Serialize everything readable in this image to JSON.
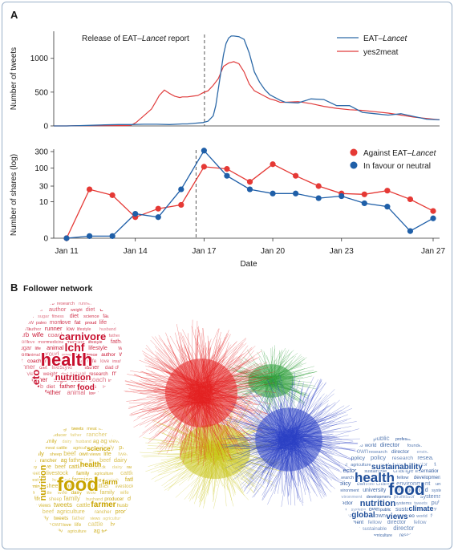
{
  "panel_a_letter": "A",
  "panel_b_letter": "B",
  "panel_b_title": "Follower network",
  "release_annotation": "Release of EAT–Lancet report",
  "colors": {
    "eat_lancet": "#2e6aa8",
    "yes2meat": "#e03c3c",
    "against": "#e53935",
    "favour": "#1f5fa8",
    "net_red": "#e32020",
    "net_yellow": "#c9c51a",
    "net_green": "#2e9e3a",
    "net_blue": "#2a3fc4",
    "wc_red": "#c8102e",
    "wc_gold": "#c9a400",
    "wc_blue": "#1f4e99"
  },
  "chart_data": [
    {
      "type": "line",
      "panel": "A-top",
      "xlabel": "",
      "ylabel": "Number of tweets",
      "x_range": [
        0,
        150
      ],
      "ylim": [
        0,
        1400
      ],
      "y_ticks": [
        0,
        500,
        1000
      ],
      "annotation": {
        "x": 58.6,
        "text": "Release of EAT–Lancet report"
      },
      "legend_position": "top-right",
      "series": [
        {
          "name": "EAT–Lancet",
          "name_plain": "EAT–",
          "name_italic": "Lancet",
          "x": [
            0,
            5,
            10,
            15,
            20,
            25,
            30,
            35,
            40,
            45,
            50,
            52,
            55,
            58,
            60,
            62,
            63,
            64,
            65,
            66,
            67,
            68,
            69,
            70,
            72,
            74,
            76,
            78,
            80,
            82,
            84,
            86,
            88,
            90,
            95,
            100,
            105,
            110,
            115,
            120,
            125,
            130,
            135,
            140,
            145,
            150
          ],
          "y": [
            0,
            0,
            5,
            10,
            15,
            20,
            20,
            25,
            25,
            20,
            30,
            30,
            40,
            50,
            70,
            150,
            300,
            550,
            800,
            1050,
            1220,
            1300,
            1330,
            1330,
            1320,
            1280,
            1080,
            800,
            650,
            540,
            460,
            420,
            380,
            350,
            340,
            400,
            390,
            300,
            300,
            200,
            180,
            160,
            180,
            140,
            100,
            90
          ]
        },
        {
          "name": "yes2meat",
          "name_plain": "yes2meat",
          "name_italic": "",
          "x": [
            0,
            5,
            10,
            15,
            20,
            25,
            28,
            30,
            32,
            35,
            38,
            40,
            41,
            43,
            45,
            47,
            49,
            50,
            52,
            54,
            56,
            58,
            60,
            62,
            64,
            66,
            68,
            70,
            72,
            74,
            76,
            78,
            80,
            82,
            84,
            86,
            88,
            90,
            95,
            100,
            105,
            110,
            115,
            120,
            125,
            130,
            135,
            140,
            145,
            150
          ],
          "y": [
            0,
            0,
            5,
            5,
            5,
            5,
            5,
            10,
            50,
            150,
            250,
            380,
            450,
            530,
            480,
            440,
            420,
            430,
            430,
            440,
            450,
            490,
            520,
            600,
            700,
            880,
            930,
            950,
            920,
            800,
            620,
            520,
            480,
            440,
            400,
            380,
            350,
            350,
            360,
            330,
            290,
            260,
            240,
            230,
            210,
            190,
            160,
            130,
            110,
            90
          ]
        }
      ]
    },
    {
      "type": "line",
      "panel": "A-bottom",
      "xlabel": "Date",
      "ylabel": "Number of shares (log)",
      "x_range": [
        0,
        16
      ],
      "y_scale": "log",
      "ylim": [
        0,
        300
      ],
      "y_ticks": [
        0,
        10,
        30,
        100,
        300
      ],
      "x_ticks": [
        {
          "pos": 0,
          "label": "Jan 11"
        },
        {
          "pos": 3,
          "label": "Jan 14"
        },
        {
          "pos": 6,
          "label": "Jan 17"
        },
        {
          "pos": 9,
          "label": "Jan 20"
        },
        {
          "pos": 12,
          "label": "Jan 23"
        },
        {
          "pos": 16,
          "label": "Jan 27"
        }
      ],
      "annotation_x": 5.65,
      "legend_position": "top-right",
      "series": [
        {
          "name": "Against EAT–Lancet",
          "name_plain": "Against EAT–",
          "name_italic": "Lancet",
          "values": [
            0,
            24,
            16,
            3,
            6,
            8,
            110,
            95,
            40,
            130,
            60,
            30,
            18,
            17,
            22,
            12,
            5
          ]
        },
        {
          "name": "In favour or neutral",
          "name_plain": "In favour or neutral",
          "name_italic": "",
          "values": [
            0,
            0.15,
            0.15,
            4,
            3,
            24,
            320,
            60,
            24,
            18,
            18,
            13,
            15,
            9,
            7,
            0.6,
            2.7
          ]
        }
      ]
    }
  ],
  "wordclouds": {
    "red": [
      "health",
      "lchf",
      "keto",
      "carnivore",
      "nutrition",
      "food",
      "meat",
      "diet",
      "carb",
      "low",
      "fitness",
      "father",
      "science",
      "doctor",
      "coach",
      "husband",
      "paleo",
      "author",
      "weight",
      "lifestyle",
      "fat",
      "medicine",
      "love",
      "runner",
      "life",
      "wife",
      "proud",
      "animal",
      "fasting",
      "sugar",
      "research",
      "insulin",
      "dad",
      "mom"
    ],
    "gold": [
      "food",
      "nutrition",
      "farmer",
      "health",
      "farm",
      "science",
      "views",
      "beef",
      "farming",
      "agriculture",
      "ag",
      "rancher",
      "sheep",
      "cattle",
      "dairy",
      "livestock",
      "family",
      "love",
      "tweets",
      "own",
      "meat",
      "husband",
      "father",
      "life",
      "wife",
      "producer"
    ],
    "blue": [
      "health",
      "food",
      "nutrition",
      "sustainability",
      "global",
      "views",
      "climate",
      "research",
      "change",
      "public",
      "science",
      "policy",
      "development",
      "sustainable",
      "world",
      "environment",
      "systems",
      "director",
      "university",
      "professor",
      "international",
      "agriculture",
      "tweets",
      "own",
      "ceo",
      "fellow",
      "founder"
    ]
  }
}
